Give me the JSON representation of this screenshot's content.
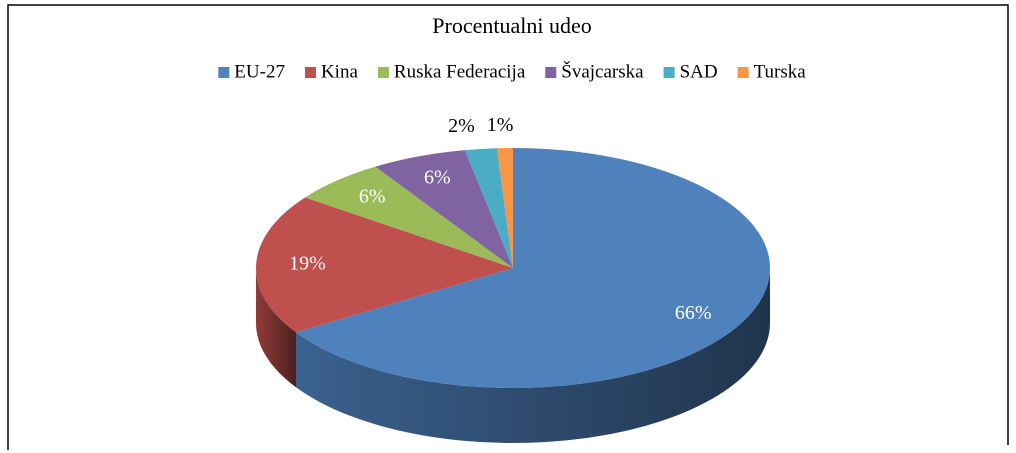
{
  "chart_data": {
    "type": "pie3d",
    "title": "Procentualni udeo",
    "categories": [
      "EU-27",
      "Kina",
      "Ruska Federacija",
      "Švajcarska",
      "SAD",
      "Turska"
    ],
    "values": [
      66,
      19,
      6,
      6,
      2,
      1
    ],
    "value_labels": [
      "66%",
      "19%",
      "6%",
      "6%",
      "2%",
      "1%"
    ],
    "colors": [
      "#4f81bd",
      "#c0504d",
      "#9bbb59",
      "#8064a2",
      "#4bacc6",
      "#f79646"
    ],
    "legend": "top"
  }
}
